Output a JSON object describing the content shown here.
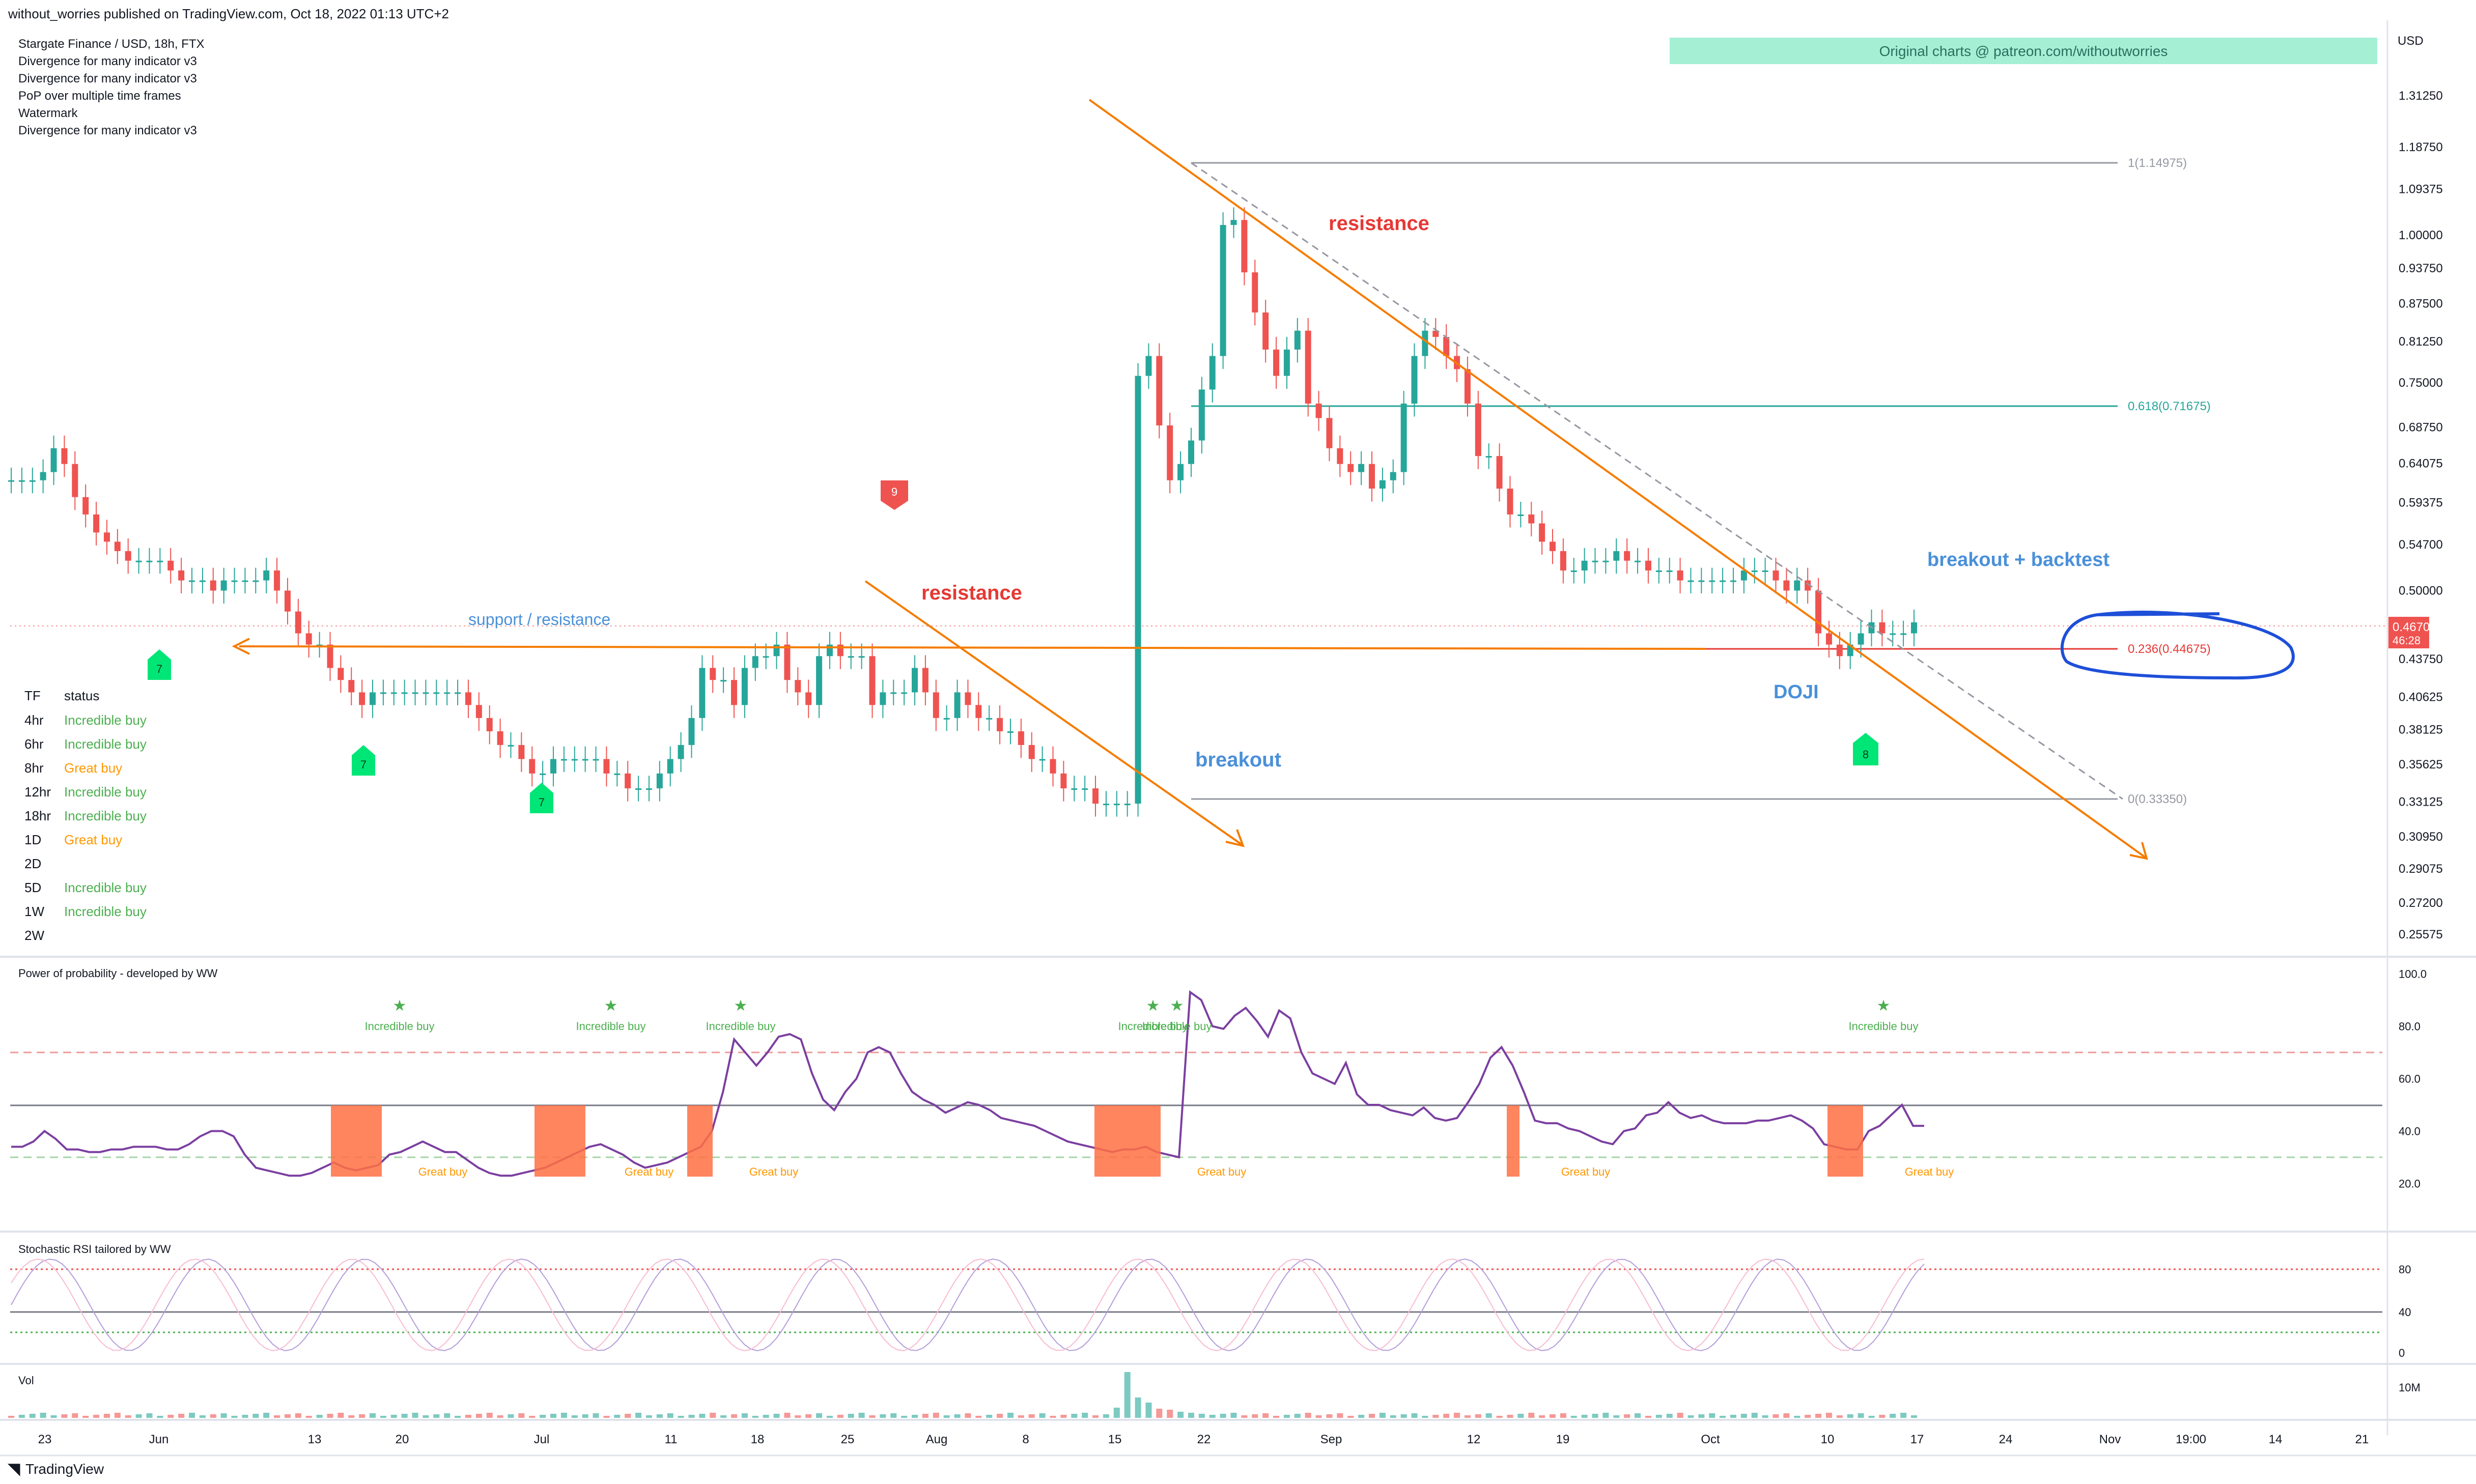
{
  "header": {
    "published": "without_worries published on TradingView.com, Oct 18, 2022 01:13 UTC+2",
    "symbol": "Stargate Finance / USD, 18h, FTX",
    "indicators": [
      "Divergence for many indicator v3",
      "Divergence for many indicator v3",
      "PoP over multiple time frames",
      "Watermark",
      "Divergence for many indicator v3"
    ],
    "banner": "Original charts @ patreon.com/withoutworries"
  },
  "footer": {
    "logo": "TradingView"
  },
  "price_axis": {
    "currency": "USD",
    "ticks": [
      "1.31250",
      "1.18750",
      "1.09375",
      "1.00000",
      "0.93750",
      "0.87500",
      "0.81250",
      "0.75000",
      "0.68750",
      "0.64075",
      "0.59375",
      "0.54700",
      "0.50000",
      "0.43750",
      "0.40625",
      "0.38125",
      "0.35625",
      "0.33125",
      "0.30950",
      "0.29075",
      "0.27200",
      "0.25575"
    ],
    "current_price": "0.46700",
    "countdown": "46:28"
  },
  "time_axis": [
    "23",
    "Jun",
    "13",
    "20",
    "Jul",
    "11",
    "18",
    "25",
    "Aug",
    "8",
    "15",
    "22",
    "Sep",
    "12",
    "19",
    "Oct",
    "10",
    "17",
    "24",
    "Nov",
    "19:00",
    "14",
    "21"
  ],
  "fib_levels": [
    {
      "label": "1(1.14975)",
      "color": "#9598a1"
    },
    {
      "label": "0.618(0.71675)",
      "color": "#26a69a"
    },
    {
      "label": "0.236(0.44675)",
      "color": "#e53935"
    },
    {
      "label": "0(0.33350)",
      "color": "#9598a1"
    }
  ],
  "annotations": {
    "resistance_1": "resistance",
    "resistance_2": "resistance",
    "support_resistance": "support / resistance",
    "breakout": "breakout",
    "breakout_backtest": "breakout + backtest",
    "doji": "DOJI"
  },
  "tf_table": {
    "header": [
      "TF",
      "status"
    ],
    "rows": [
      {
        "tf": "4hr",
        "status": "Incredible buy",
        "color": "#4caf50"
      },
      {
        "tf": "6hr",
        "status": "Incredible buy",
        "color": "#4caf50"
      },
      {
        "tf": "8hr",
        "status": "Great buy",
        "color": "#ff9800"
      },
      {
        "tf": "12hr",
        "status": "Incredible buy",
        "color": "#4caf50"
      },
      {
        "tf": "18hr",
        "status": "Incredible buy",
        "color": "#4caf50"
      },
      {
        "tf": "1D",
        "status": "Great buy",
        "color": "#ff9800"
      },
      {
        "tf": "2D",
        "status": "",
        "color": "#4caf50"
      },
      {
        "tf": "5D",
        "status": "Incredible buy",
        "color": "#4caf50"
      },
      {
        "tf": "1W",
        "status": "Incredible buy",
        "color": "#4caf50"
      },
      {
        "tf": "2W",
        "status": "",
        "color": "#4caf50"
      }
    ]
  },
  "markers": {
    "buy_7": "7",
    "sell_9": "9",
    "buy_8": "8"
  },
  "pop_panel": {
    "title": "Power of probability - developed by WW",
    "ticks": [
      "100.0",
      "80.0",
      "60.0",
      "40.0",
      "20.0"
    ],
    "incredible_label": "Incredible buy",
    "great_label": "Great buy"
  },
  "stoch_panel": {
    "title": "Stochastic RSI tailored by WW",
    "ticks": [
      "80",
      "40",
      "0"
    ]
  },
  "vol_panel": {
    "title": "Vol",
    "ticks": [
      "10M"
    ]
  },
  "colors": {
    "up": "#26a69a",
    "down": "#ef5350",
    "trendline": "#f57c00",
    "annotation_red": "#e53935",
    "annotation_blue": "#4a90d9",
    "circle": "#1e4fd8",
    "banner_bg": "#a5f0d4"
  },
  "chart_data": {
    "type": "candlestick",
    "title": "Stargate Finance / USD, 18h, FTX",
    "ylim": [
      0.25,
      1.34
    ],
    "y_scale": "log",
    "closes": [
      0.62,
      0.62,
      0.62,
      0.63,
      0.66,
      0.64,
      0.6,
      0.58,
      0.56,
      0.55,
      0.54,
      0.53,
      0.53,
      0.53,
      0.53,
      0.52,
      0.51,
      0.51,
      0.51,
      0.5,
      0.51,
      0.51,
      0.51,
      0.51,
      0.52,
      0.5,
      0.48,
      0.46,
      0.45,
      0.45,
      0.43,
      0.42,
      0.41,
      0.4,
      0.41,
      0.41,
      0.41,
      0.41,
      0.41,
      0.41,
      0.41,
      0.41,
      0.41,
      0.4,
      0.39,
      0.38,
      0.37,
      0.37,
      0.36,
      0.35,
      0.35,
      0.36,
      0.36,
      0.36,
      0.36,
      0.36,
      0.35,
      0.35,
      0.34,
      0.34,
      0.34,
      0.35,
      0.36,
      0.37,
      0.39,
      0.43,
      0.42,
      0.42,
      0.4,
      0.43,
      0.44,
      0.44,
      0.45,
      0.42,
      0.41,
      0.4,
      0.44,
      0.45,
      0.44,
      0.44,
      0.44,
      0.4,
      0.41,
      0.41,
      0.41,
      0.43,
      0.41,
      0.39,
      0.39,
      0.41,
      0.4,
      0.39,
      0.39,
      0.38,
      0.38,
      0.37,
      0.36,
      0.36,
      0.35,
      0.34,
      0.34,
      0.34,
      0.33,
      0.33,
      0.33,
      0.33,
      0.76,
      0.79,
      0.69,
      0.62,
      0.64,
      0.67,
      0.74,
      0.79,
      1.02,
      1.03,
      0.93,
      0.86,
      0.8,
      0.76,
      0.8,
      0.83,
      0.72,
      0.7,
      0.66,
      0.64,
      0.63,
      0.64,
      0.61,
      0.62,
      0.63,
      0.72,
      0.79,
      0.83,
      0.82,
      0.79,
      0.77,
      0.72,
      0.65,
      0.65,
      0.61,
      0.58,
      0.58,
      0.57,
      0.55,
      0.54,
      0.52,
      0.52,
      0.53,
      0.53,
      0.53,
      0.54,
      0.53,
      0.53,
      0.52,
      0.52,
      0.52,
      0.51,
      0.51,
      0.51,
      0.51,
      0.51,
      0.51,
      0.52,
      0.52,
      0.52,
      0.51,
      0.5,
      0.51,
      0.5,
      0.46,
      0.45,
      0.44,
      0.45,
      0.46,
      0.47,
      0.46,
      0.46,
      0.46,
      0.47
    ],
    "fib": {
      "1": 1.14975,
      "0.618": 0.71675,
      "0.236": 0.44675,
      "0": 0.3335
    },
    "current_price": 0.467,
    "pop_series": [
      34,
      34,
      36,
      40,
      37,
      33,
      33,
      32,
      32,
      33,
      33,
      34,
      34,
      34,
      33,
      33,
      35,
      38,
      40,
      40,
      38,
      31,
      26,
      25,
      24,
      23,
      23,
      24,
      26,
      28,
      26,
      25,
      26,
      27,
      31,
      32,
      34,
      36,
      34,
      32,
      32,
      29,
      26,
      24,
      23,
      23,
      24,
      25,
      26,
      28,
      30,
      32,
      34,
      35,
      33,
      31,
      28,
      26,
      27,
      28,
      30,
      32,
      34,
      40,
      55,
      75,
      70,
      65,
      70,
      76,
      77,
      75,
      62,
      52,
      48,
      55,
      60,
      70,
      72,
      70,
      62,
      55,
      52,
      50,
      47,
      49,
      51,
      50,
      48,
      45,
      44,
      43,
      42,
      40,
      38,
      36,
      35,
      34,
      33,
      32,
      33,
      33,
      34,
      32,
      31,
      30,
      93,
      90,
      80,
      79,
      84,
      87,
      82,
      76,
      86,
      83,
      70,
      62,
      60,
      58,
      66,
      54,
      50,
      50,
      48,
      47,
      46,
      49,
      45,
      44,
      45,
      51,
      58,
      68,
      72,
      65,
      55,
      44,
      43,
      43,
      41,
      40,
      38,
      36,
      35,
      40,
      41,
      46,
      47,
      51,
      47,
      45,
      46,
      44,
      43,
      43,
      43,
      44,
      44,
      45,
      46,
      44,
      41,
      35,
      34,
      33,
      33,
      40,
      42,
      46,
      50,
      42,
      42
    ]
  }
}
